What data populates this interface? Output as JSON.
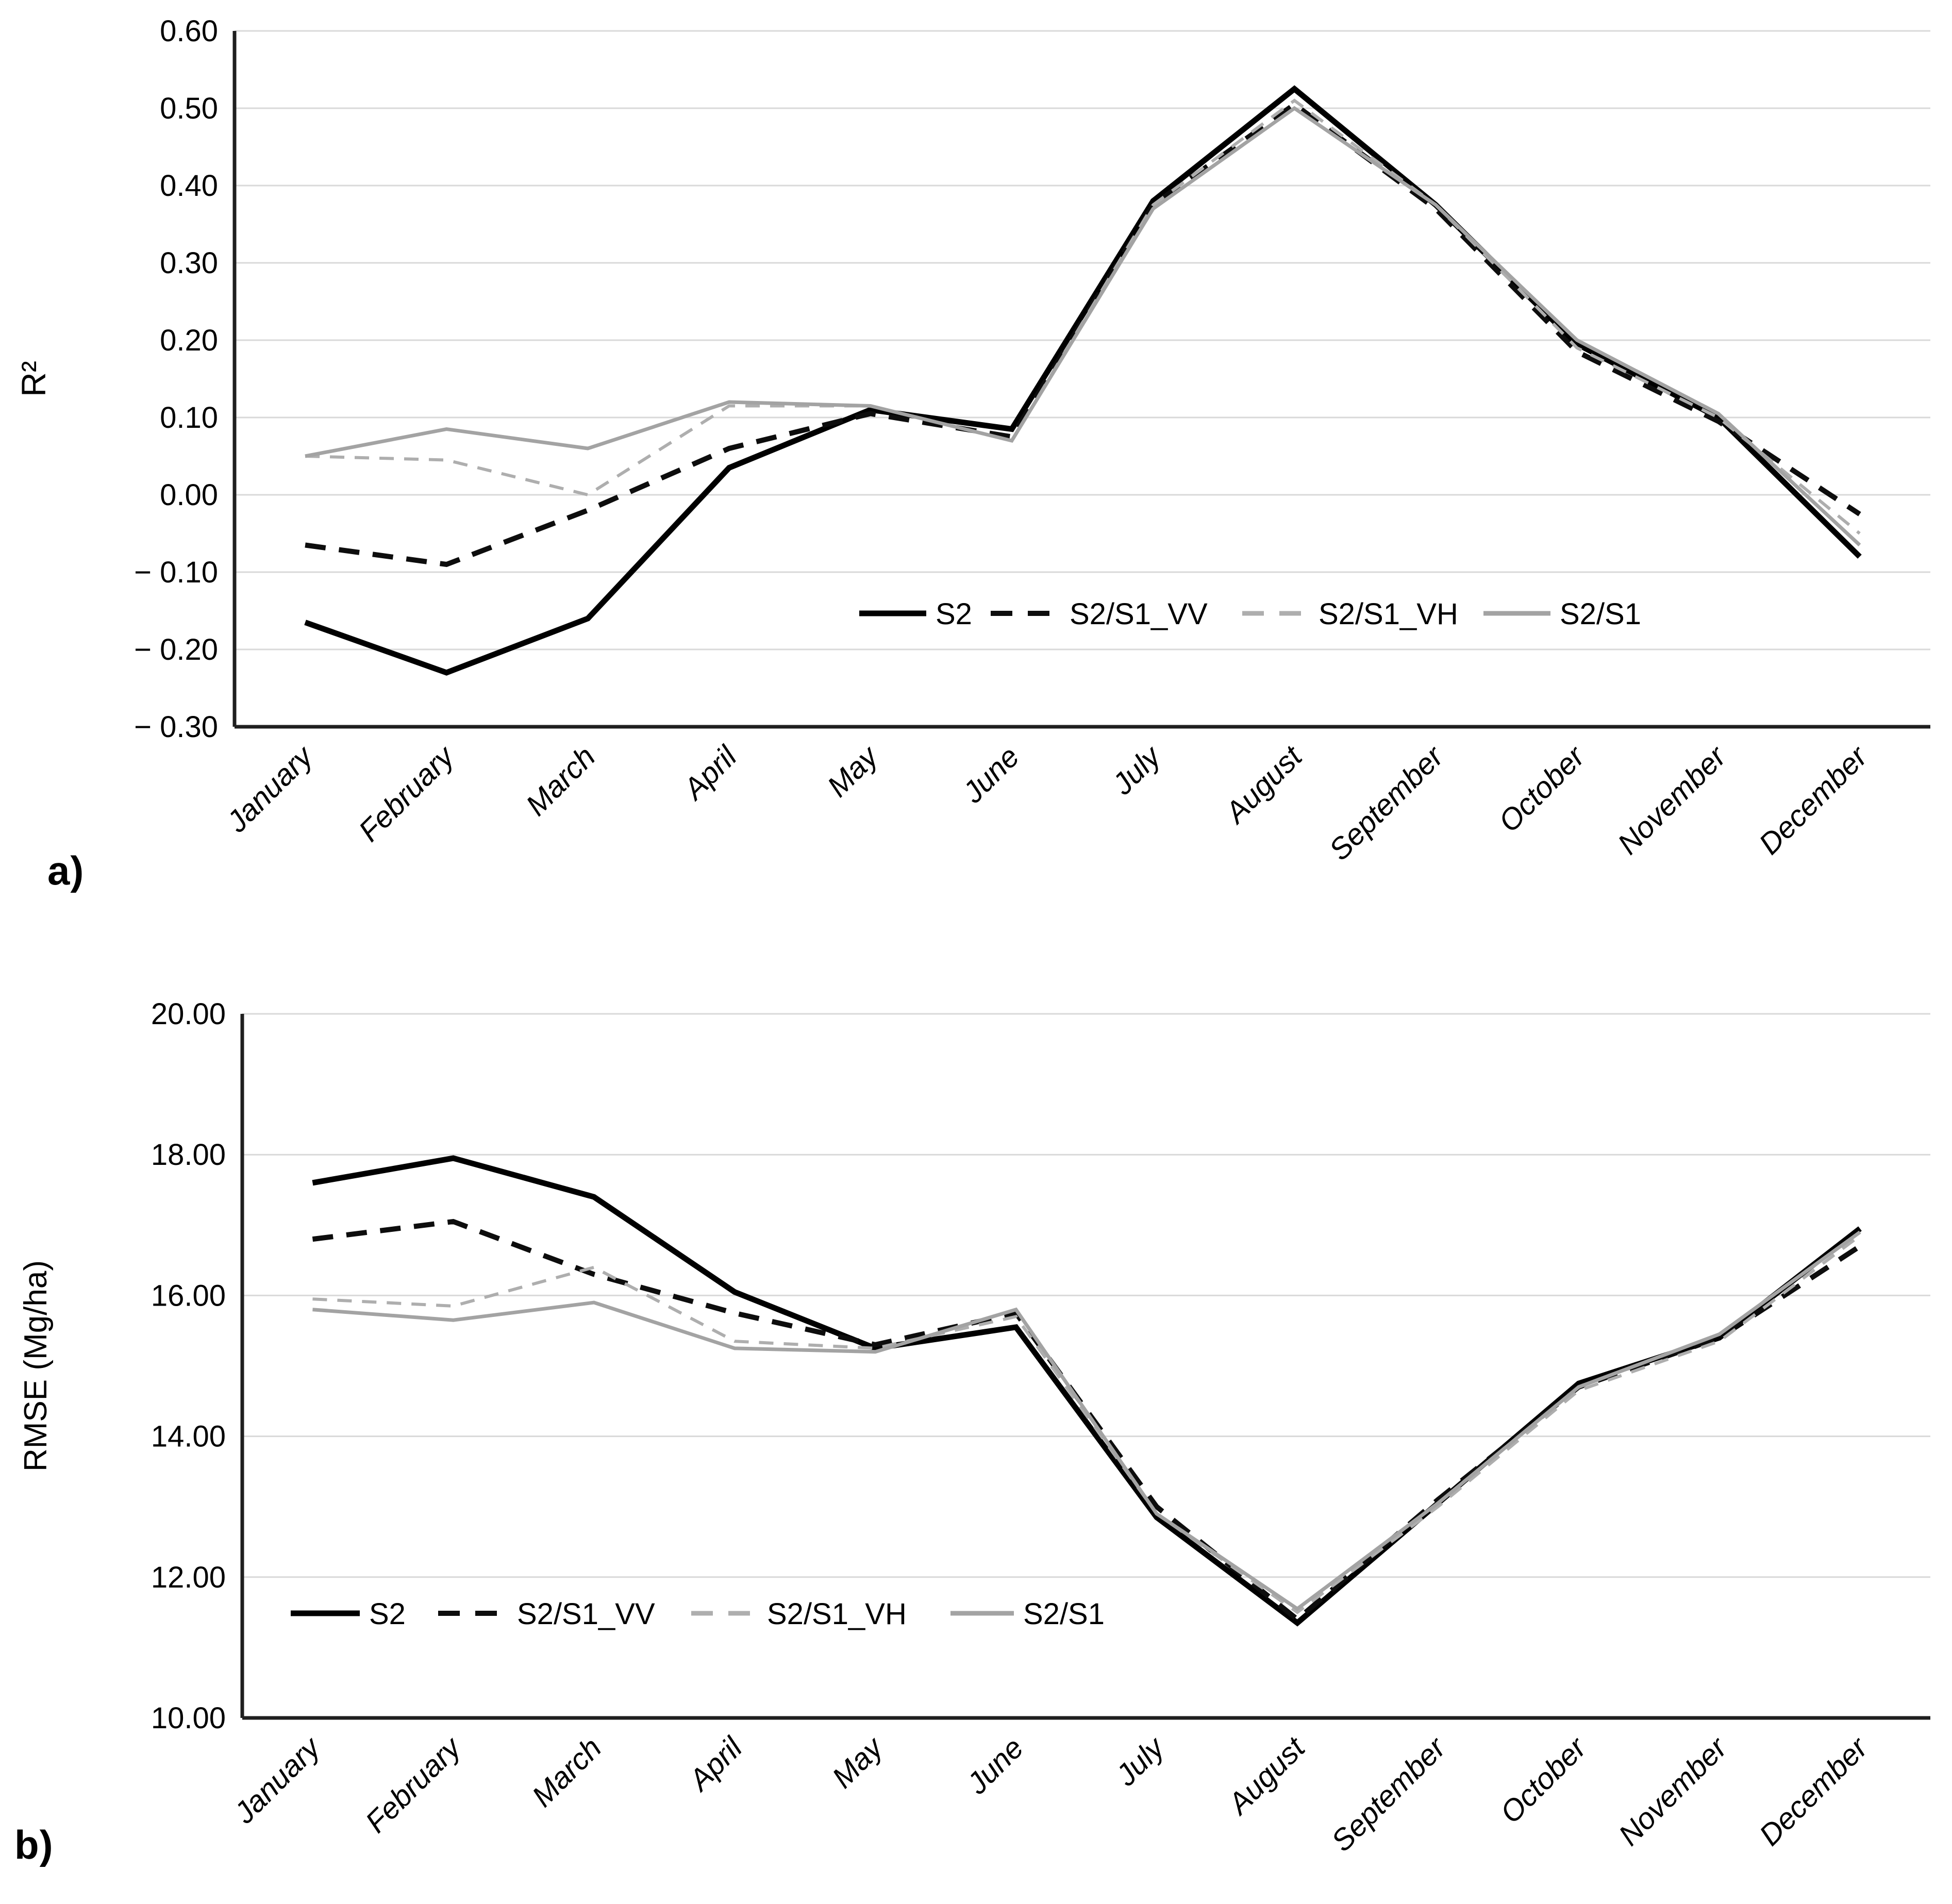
{
  "page": {
    "background": "#ffffff"
  },
  "panel_a_label": "a)",
  "panel_b_label": "b)",
  "chart_data": [
    {
      "type": "line",
      "title": "",
      "xlabel": "",
      "ylabel": "R²",
      "panel_label": "a)",
      "categories": [
        "January",
        "February",
        "March",
        "April",
        "May",
        "June",
        "July",
        "August",
        "September",
        "October",
        "November",
        "December"
      ],
      "ylim": [
        -0.3,
        0.6
      ],
      "ytick_step": 0.1,
      "ytick_labels": [
        "0.60",
        "0.50",
        "0.40",
        "0.30",
        "0.20",
        "0.10",
        "0.00",
        "− 0.10",
        "− 0.20",
        "− 0.30"
      ],
      "grid": true,
      "legend_position": "inside-center-right",
      "series": [
        {
          "name": "S2",
          "color": "#000000",
          "dash": null,
          "width": 11,
          "values": [
            -0.165,
            -0.23,
            -0.16,
            0.035,
            0.11,
            0.085,
            0.38,
            0.525,
            0.375,
            0.195,
            0.1,
            -0.08
          ]
        },
        {
          "name": "S2/S1_VV",
          "color": "#0d0d0d",
          "dash": "40 26",
          "width": 10,
          "values": [
            -0.065,
            -0.09,
            -0.02,
            0.06,
            0.105,
            0.075,
            0.375,
            0.505,
            0.37,
            0.185,
            0.095,
            -0.025
          ]
        },
        {
          "name": "S2/S1_VH",
          "color": "#aeaeae",
          "dash": "28 20",
          "width": 6,
          "values": [
            0.05,
            0.045,
            0.0,
            0.115,
            0.115,
            0.07,
            0.375,
            0.51,
            0.375,
            0.19,
            0.1,
            -0.05
          ]
        },
        {
          "name": "S2/S1",
          "color": "#a3a3a3",
          "dash": null,
          "width": 7,
          "values": [
            0.05,
            0.085,
            0.06,
            0.12,
            0.115,
            0.07,
            0.37,
            0.5,
            0.375,
            0.2,
            0.105,
            -0.065
          ]
        }
      ]
    },
    {
      "type": "line",
      "title": "",
      "xlabel": "",
      "ylabel": "RMSE (Mg/ha)",
      "panel_label": "b)",
      "categories": [
        "January",
        "February",
        "March",
        "April",
        "May",
        "June",
        "July",
        "August",
        "September",
        "October",
        "November",
        "December"
      ],
      "ylim": [
        10.0,
        20.0
      ],
      "ytick_step": 2.0,
      "ytick_labels": [
        "20.00",
        "18.00",
        "16.00",
        "14.00",
        "12.00",
        "10.00"
      ],
      "grid": true,
      "legend_position": "inside-bottom-left",
      "series": [
        {
          "name": "S2",
          "color": "#000000",
          "dash": null,
          "width": 11,
          "values": [
            17.6,
            17.95,
            17.4,
            16.05,
            15.25,
            15.55,
            12.85,
            11.35,
            13.05,
            14.75,
            15.4,
            16.95
          ]
        },
        {
          "name": "S2/S1_VV",
          "color": "#0d0d0d",
          "dash": "40 26",
          "width": 10,
          "values": [
            16.8,
            17.05,
            16.3,
            15.75,
            15.3,
            15.75,
            13.0,
            11.4,
            13.1,
            14.7,
            15.4,
            16.7
          ]
        },
        {
          "name": "S2/S1_VH",
          "color": "#aeaeae",
          "dash": "28 20",
          "width": 6,
          "values": [
            15.95,
            15.85,
            16.4,
            15.35,
            15.25,
            15.7,
            12.9,
            11.5,
            13.0,
            14.65,
            15.35,
            16.85
          ]
        },
        {
          "name": "S2/S1",
          "color": "#a3a3a3",
          "dash": null,
          "width": 7,
          "values": [
            15.8,
            15.65,
            15.9,
            15.25,
            15.2,
            15.8,
            12.9,
            11.55,
            13.05,
            14.7,
            15.45,
            16.9
          ]
        }
      ]
    }
  ],
  "colors": {
    "grid": "#d9d9d9",
    "axis": "#1f1f1f",
    "text": "#000000"
  }
}
